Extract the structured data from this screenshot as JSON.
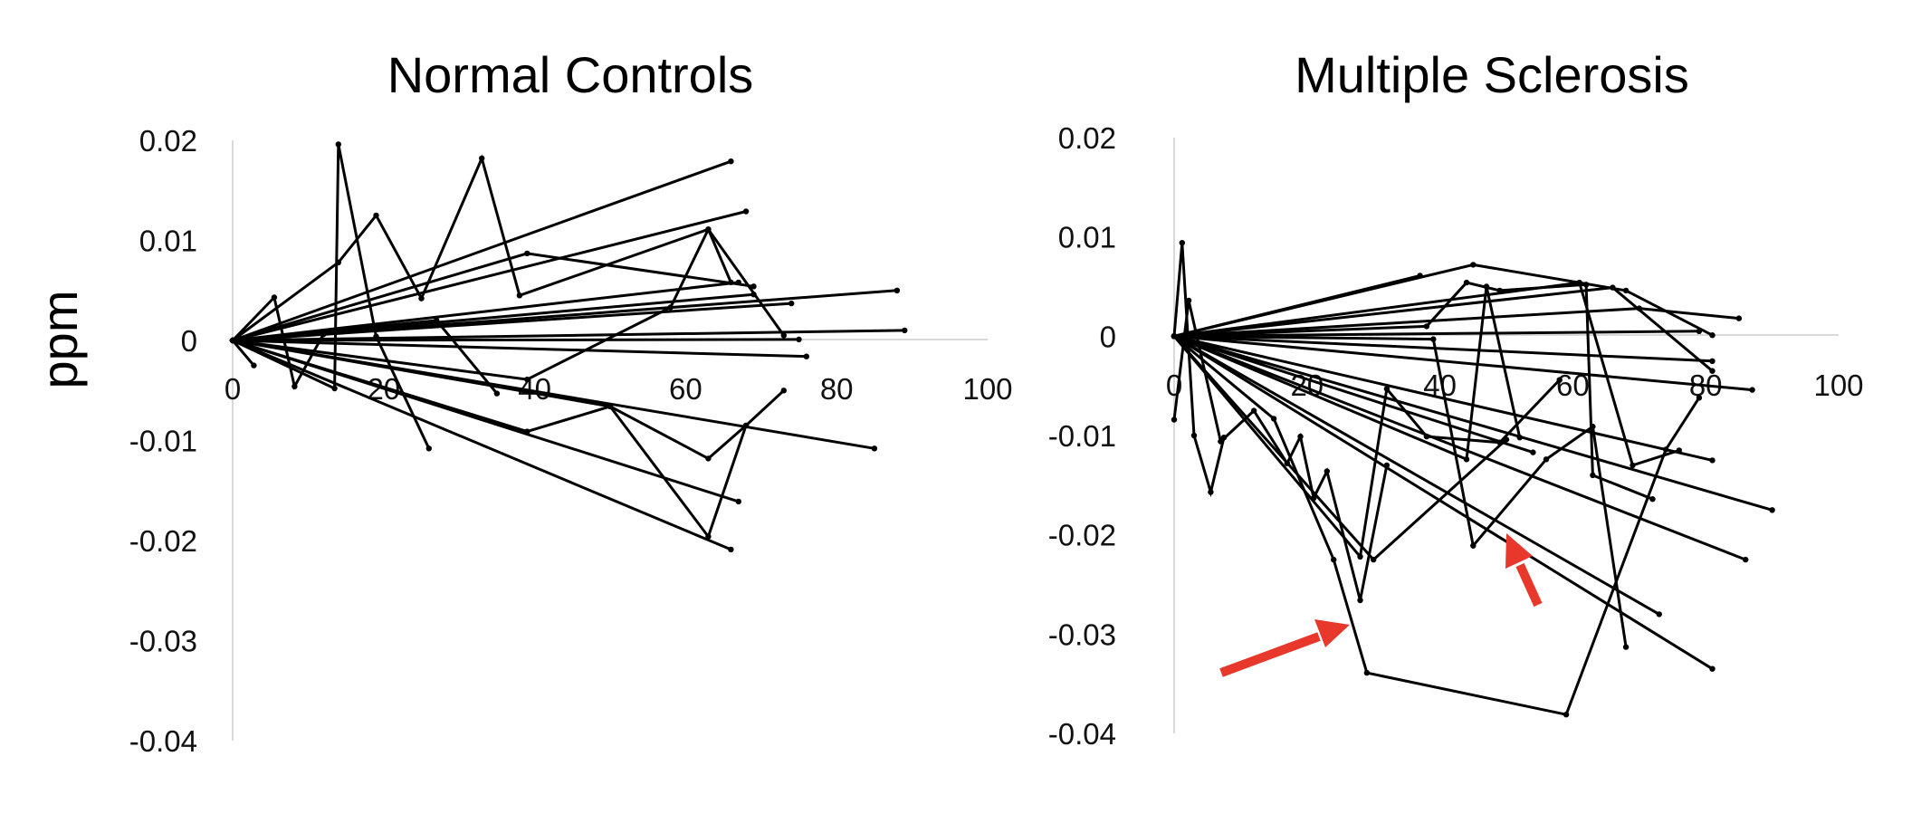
{
  "figure": {
    "ylabel": "ppm",
    "colors": {
      "line": "#000000",
      "arrow": "#e8382c",
      "axis": "#d9d9d9"
    }
  },
  "chart_data": [
    {
      "type": "line",
      "title": "Normal Controls",
      "xlabel": "",
      "ylabel": "ppm",
      "xlim": [
        0,
        100
      ],
      "ylim": [
        -0.04,
        0.02
      ],
      "x_ticks": [
        "0",
        "20",
        "40",
        "60",
        "80",
        "100"
      ],
      "y_ticks": [
        "0.02",
        "0.01",
        "0",
        "-0.01",
        "-0.02",
        "-0.03",
        "-0.04"
      ],
      "grid": false,
      "series": [
        {
          "x": [
            0,
            14,
            19,
            25,
            33,
            38,
            63,
            66
          ],
          "y": [
            0,
            0.0078,
            0.0125,
            0.0042,
            0.0182,
            0.0045,
            0.0111,
            0.0058
          ]
        },
        {
          "x": [
            0,
            13.5,
            14,
            19,
            26
          ],
          "y": [
            0,
            -0.0048,
            0.0196,
            0.0004,
            -0.0108
          ]
        },
        {
          "x": [
            0,
            5.5,
            8.2,
            12
          ],
          "y": [
            0,
            0.0043,
            -0.0046,
            0.0006
          ]
        },
        {
          "x": [
            0,
            2.8
          ],
          "y": [
            0,
            -0.0025
          ]
        },
        {
          "x": [
            0,
            66
          ],
          "y": [
            0,
            0.0179
          ]
        },
        {
          "x": [
            0,
            68
          ],
          "y": [
            0,
            0.0129
          ]
        },
        {
          "x": [
            0,
            39,
            69
          ],
          "y": [
            0,
            0.0087,
            0.0054
          ]
        },
        {
          "x": [
            0,
            67
          ],
          "y": [
            0,
            0.0058
          ]
        },
        {
          "x": [
            0,
            69
          ],
          "y": [
            0,
            0.0046
          ]
        },
        {
          "x": [
            0,
            74
          ],
          "y": [
            0,
            0.0037
          ]
        },
        {
          "x": [
            0,
            88
          ],
          "y": [
            0,
            0.005
          ]
        },
        {
          "x": [
            0,
            89
          ],
          "y": [
            0,
            0.001
          ]
        },
        {
          "x": [
            0,
            75
          ],
          "y": [
            0,
            0.0001
          ]
        },
        {
          "x": [
            0,
            76
          ],
          "y": [
            0,
            -0.0016
          ]
        },
        {
          "x": [
            0,
            27,
            35
          ],
          "y": [
            0,
            0.002,
            -0.0053
          ]
        },
        {
          "x": [
            0,
            39,
            58,
            63,
            73
          ],
          "y": [
            0,
            -0.0039,
            0.0033,
            0.0111,
            0.0005
          ]
        },
        {
          "x": [
            0,
            39,
            50,
            63,
            68,
            73
          ],
          "y": [
            0,
            -0.0091,
            -0.0066,
            -0.0118,
            -0.0085,
            -0.005
          ]
        },
        {
          "x": [
            0,
            85
          ],
          "y": [
            0,
            -0.0108
          ]
        },
        {
          "x": [
            0,
            67
          ],
          "y": [
            0,
            -0.0161
          ]
        },
        {
          "x": [
            0,
            50,
            63,
            68
          ],
          "y": [
            0,
            -0.0066,
            -0.0196,
            -0.0085
          ]
        },
        {
          "x": [
            0,
            66
          ],
          "y": [
            0,
            -0.0209
          ]
        }
      ]
    },
    {
      "type": "line",
      "title": "Multiple Sclerosis",
      "xlabel": "",
      "ylabel": "",
      "xlim": [
        0,
        100
      ],
      "ylim": [
        -0.04,
        0.02
      ],
      "x_ticks": [
        "0",
        "20",
        "40",
        "60",
        "80",
        "100"
      ],
      "y_ticks": [
        "0.02",
        "0.01",
        "0",
        "-0.01",
        "-0.02",
        "-0.03",
        "-0.04"
      ],
      "grid": false,
      "annotations": [
        "red arrow",
        "red arrow"
      ],
      "series": [
        {
          "x": [
            0,
            1.2,
            3,
            5.5,
            7.5
          ],
          "y": [
            0,
            0.0094,
            -0.01,
            -0.0157,
            -0.0102
          ]
        },
        {
          "x": [
            0,
            2.2,
            7,
            12,
            17,
            19,
            21,
            23,
            28,
            32
          ],
          "y": [
            -0.0084,
            0.0036,
            -0.0106,
            -0.0075,
            -0.0128,
            -0.0101,
            -0.0163,
            -0.0136,
            -0.0266,
            -0.013
          ]
        },
        {
          "x": [
            0,
            15,
            24,
            29,
            59,
            74,
            79
          ],
          "y": [
            0,
            -0.0083,
            -0.0225,
            -0.0339,
            -0.0381,
            -0.0114,
            -0.0062
          ]
        },
        {
          "x": [
            0,
            28,
            32,
            38,
            49,
            58
          ],
          "y": [
            0,
            -0.0222,
            -0.0053,
            -0.0101,
            -0.0107,
            -0.0044
          ]
        },
        {
          "x": [
            0,
            30,
            50
          ],
          "y": [
            0,
            -0.0225,
            -0.0104
          ]
        },
        {
          "x": [
            0,
            37
          ],
          "y": [
            0,
            0.0061
          ]
        },
        {
          "x": [
            0,
            38,
            44,
            49,
            62,
            63,
            72
          ],
          "y": [
            0,
            0.001,
            0.0054,
            0.0046,
            0.0052,
            -0.014,
            -0.0164
          ]
        },
        {
          "x": [
            0,
            45,
            68,
            81
          ],
          "y": [
            0,
            0.0072,
            0.0046,
            0.0001
          ]
        },
        {
          "x": [
            0,
            66,
            81
          ],
          "y": [
            0,
            0.0049,
            -0.0035
          ]
        },
        {
          "x": [
            0,
            79
          ],
          "y": [
            0,
            0.0005
          ]
        },
        {
          "x": [
            0,
            61,
            69,
            76
          ],
          "y": [
            0,
            0.0054,
            -0.013,
            -0.0115
          ]
        },
        {
          "x": [
            0,
            70,
            85
          ],
          "y": [
            0,
            0.0028,
            0.0018
          ]
        },
        {
          "x": [
            0,
            44,
            47,
            52
          ],
          "y": [
            0,
            -0.0124,
            0.005,
            -0.0102
          ]
        },
        {
          "x": [
            0,
            39,
            45,
            56,
            63,
            68
          ],
          "y": [
            0,
            -0.0003,
            -0.0211,
            -0.0124,
            -0.0091,
            -0.0313
          ]
        },
        {
          "x": [
            0,
            81
          ],
          "y": [
            0,
            -0.0025
          ]
        },
        {
          "x": [
            0,
            87
          ],
          "y": [
            0,
            -0.0054
          ]
        },
        {
          "x": [
            0,
            81
          ],
          "y": [
            0,
            -0.0125
          ]
        },
        {
          "x": [
            0,
            90
          ],
          "y": [
            0,
            -0.0175
          ]
        },
        {
          "x": [
            0,
            86
          ],
          "y": [
            0,
            -0.0225
          ]
        },
        {
          "x": [
            0,
            81
          ],
          "y": [
            0,
            -0.0335
          ]
        },
        {
          "x": [
            0,
            73
          ],
          "y": [
            0,
            -0.028
          ]
        },
        {
          "x": [
            0,
            54
          ],
          "y": [
            0,
            -0.0117
          ]
        }
      ]
    }
  ]
}
